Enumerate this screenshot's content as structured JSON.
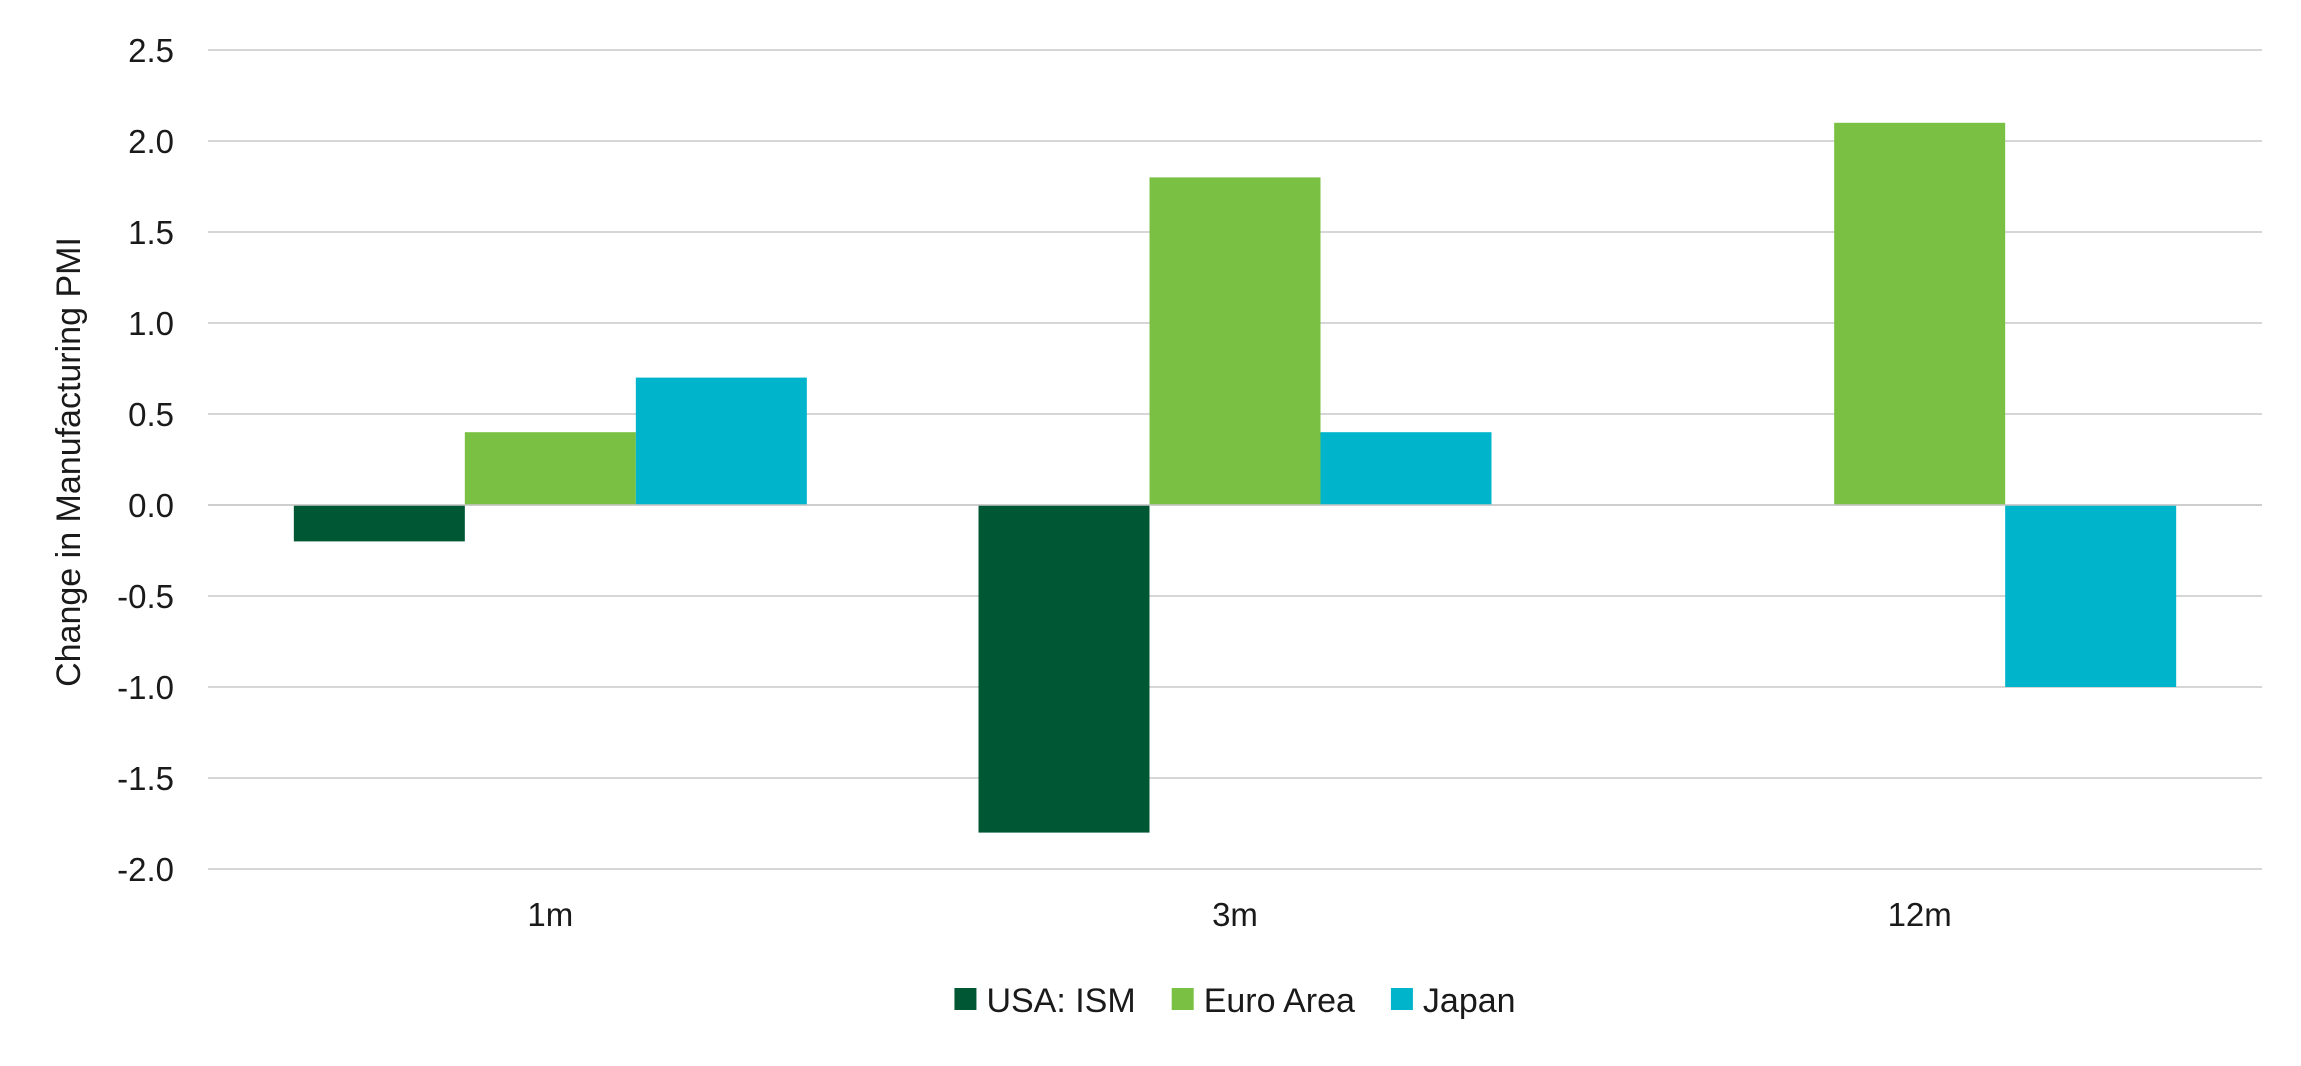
{
  "chart_data": {
    "type": "bar",
    "title": "",
    "xlabel": "",
    "ylabel": "Change in Manufacturing PMI",
    "categories": [
      "1m",
      "3m",
      "12m"
    ],
    "series": [
      {
        "name": "USA: ISM",
        "color": "#005734",
        "values": [
          -0.2,
          -1.8,
          0.0
        ]
      },
      {
        "name": "Euro Area",
        "color": "#7ac143",
        "values": [
          0.4,
          1.8,
          2.1
        ]
      },
      {
        "name": "Japan",
        "color": "#00b5cb",
        "values": [
          0.7,
          0.4,
          -1.0
        ]
      }
    ],
    "ylim": [
      -2.0,
      2.5
    ],
    "yticks": [
      "2.5",
      "2.0",
      "1.5",
      "1.0",
      "0.5",
      "0.0",
      "-0.5",
      "-1.0",
      "-1.5",
      "-2.0"
    ],
    "grid": true,
    "legend": "bottom-center"
  }
}
